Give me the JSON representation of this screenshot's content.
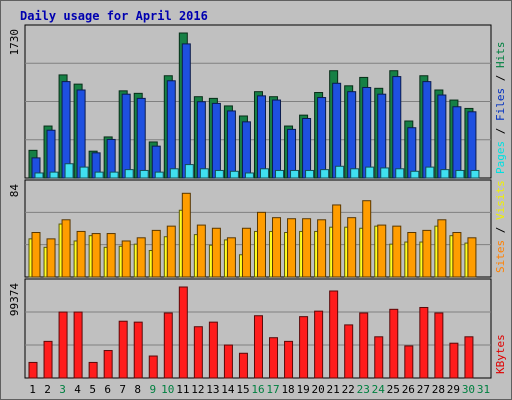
{
  "chart_data": {
    "type": "bar",
    "title": "Daily usage for April 2016",
    "categories": [
      "1",
      "2",
      "3",
      "4",
      "5",
      "6",
      "7",
      "8",
      "9",
      "10",
      "11",
      "12",
      "13",
      "14",
      "15",
      "16",
      "17",
      "18",
      "19",
      "20",
      "21",
      "22",
      "23",
      "24",
      "25",
      "26",
      "27",
      "28",
      "29",
      "30",
      "31"
    ],
    "weekend_categories": [
      "3",
      "9",
      "10",
      "16",
      "17",
      "23",
      "24",
      "30",
      "31"
    ],
    "panels": [
      {
        "id": "hits-files-pages",
        "ymax_label": "1730",
        "ylim": [
          0,
          1730
        ],
        "legend": [
          {
            "text": "Pages",
            "color": "#00e0e0"
          },
          {
            "text": " / ",
            "color": "#000000"
          },
          {
            "text": "Files",
            "color": "#0030c0"
          },
          {
            "text": " / ",
            "color": "#000000"
          },
          {
            "text": "Hits",
            "color": "#008040"
          }
        ],
        "series": [
          {
            "name": "Hits",
            "color": "#168045",
            "offset": 0,
            "values": [
              330,
              620,
              1230,
              1120,
              320,
              490,
              1040,
              1010,
              430,
              1220,
              1730,
              970,
              950,
              860,
              740,
              1030,
              970,
              620,
              750,
              1020,
              1280,
              1100,
              1200,
              1070,
              1280,
              680,
              1220,
              1050,
              930,
              830,
              0
            ]
          },
          {
            "name": "Files",
            "color": "#1e50e0",
            "offset": 1,
            "values": [
              240,
              570,
              1150,
              1050,
              300,
              460,
              1000,
              950,
              380,
              1160,
              1600,
              910,
              890,
              800,
              670,
              980,
              930,
              580,
              710,
              960,
              1130,
              1030,
              1080,
              1000,
              1210,
              600,
              1150,
              990,
              850,
              790,
              0
            ]
          },
          {
            "name": "Pages",
            "color": "#40e0f0",
            "offset": 2,
            "values": [
              60,
              70,
              170,
              130,
              70,
              70,
              100,
              90,
              70,
              110,
              160,
              110,
              90,
              80,
              60,
              110,
              90,
              90,
              90,
              100,
              140,
              110,
              130,
              120,
              110,
              80,
              130,
              100,
              90,
              90,
              0
            ]
          }
        ]
      },
      {
        "id": "visits-sites",
        "ymax_label": "84",
        "ylim": [
          0,
          84
        ],
        "legend": [
          {
            "text": "Sites",
            "color": "#ff8000"
          },
          {
            "text": " / ",
            "color": "#000000"
          },
          {
            "text": "Visits",
            "color": "#f0f000"
          }
        ],
        "series": [
          {
            "name": "Visits",
            "color": "#ffff20",
            "offset": 0,
            "values": [
              36,
              28,
              50,
              34,
              39,
              28,
              29,
              31,
              25,
              38,
              63,
              40,
              30,
              35,
              21,
              43,
              43,
              42,
              43,
              43,
              47,
              47,
              46,
              48,
              31,
              33,
              33,
              48,
              39,
              32,
              0
            ]
          },
          {
            "name": "Sites",
            "color": "#ff9d00",
            "offset": 1,
            "values": [
              42,
              36,
              54,
              43,
              41,
              41,
              34,
              37,
              44,
              48,
              79,
              49,
              46,
              37,
              46,
              61,
              56,
              55,
              55,
              54,
              68,
              56,
              72,
              49,
              48,
              42,
              44,
              54,
              42,
              37,
              0
            ]
          }
        ]
      },
      {
        "id": "kbytes",
        "ymax_label": "99374",
        "ylim": [
          0,
          99374
        ],
        "legend": [
          {
            "text": "KBytes",
            "color": "#e00000"
          }
        ],
        "series": [
          {
            "name": "KBytes",
            "color": "#ff1c1c",
            "offset": 0,
            "values": [
              17000,
              40000,
              72000,
              72000,
              17000,
              30000,
              62000,
              61000,
              24000,
              71000,
              99374,
              56000,
              61000,
              36000,
              27000,
              68000,
              44000,
              40000,
              67000,
              73000,
              95000,
              58000,
              71000,
              45000,
              75000,
              35000,
              77000,
              71000,
              38000,
              45000,
              0
            ]
          }
        ]
      }
    ]
  }
}
